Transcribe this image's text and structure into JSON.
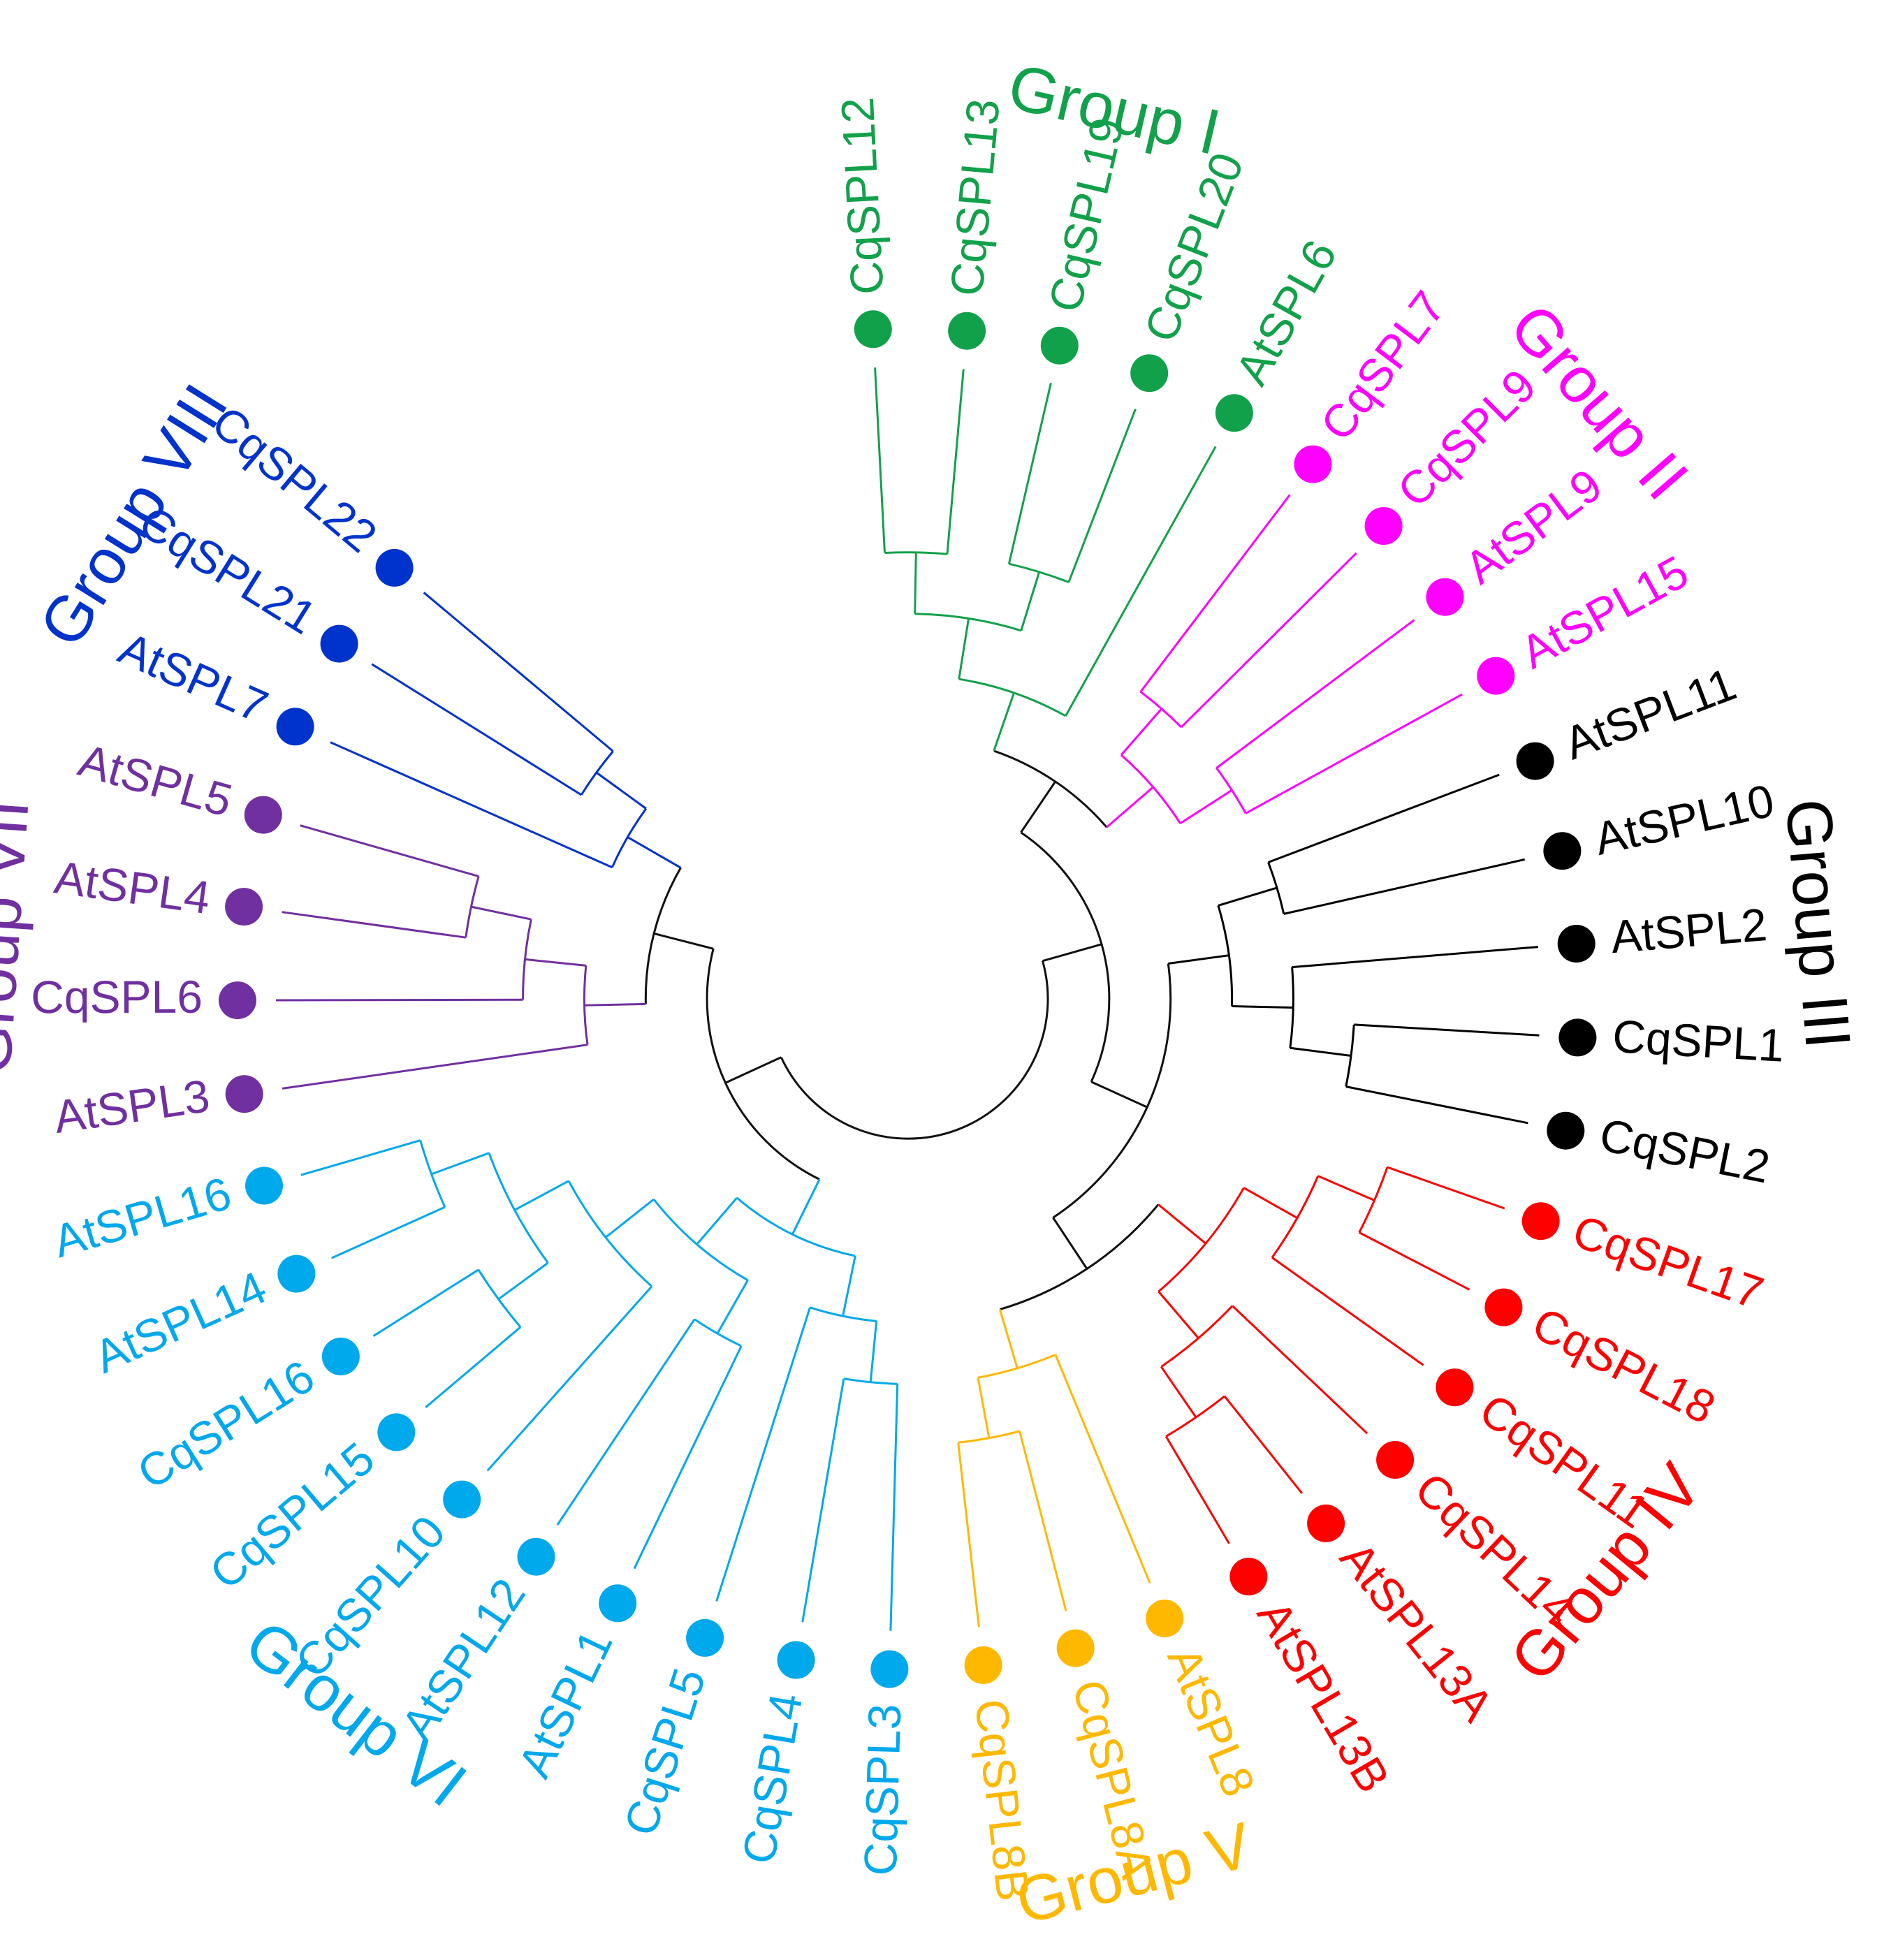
{
  "colors": {
    "backbone": "#111111",
    "group_i": "#12a14b",
    "group_ii": "#ff00ff",
    "group_iii": "#000000",
    "group_iv": "#ff0000",
    "group_v": "#ffb800",
    "group_vi": "#00a8ec",
    "group_vii": "#7030a0",
    "group_viii": "#0033cc"
  },
  "groups": [
    {
      "key": "group_i",
      "label": "Group I"
    },
    {
      "key": "group_ii",
      "label": "Group II"
    },
    {
      "key": "group_iii",
      "label": "Group III"
    },
    {
      "key": "group_iv",
      "label": "Group IV"
    },
    {
      "key": "group_v",
      "label": "Group V"
    },
    {
      "key": "group_vi",
      "label": "Group VI"
    },
    {
      "key": "group_vii",
      "label": "Group VII"
    },
    {
      "key": "group_viii",
      "label": "Group VIII"
    }
  ],
  "leaves": [
    {
      "name": "CqSPL12",
      "group": "group_i"
    },
    {
      "name": "CqSPL13",
      "group": "group_i"
    },
    {
      "name": "CqSPL19",
      "group": "group_i"
    },
    {
      "name": "CqSPL20",
      "group": "group_i"
    },
    {
      "name": "AtSPL6",
      "group": "group_i"
    },
    {
      "name": "CqSPL7",
      "group": "group_ii"
    },
    {
      "name": "CqSPL9",
      "group": "group_ii"
    },
    {
      "name": "AtSPL9",
      "group": "group_ii"
    },
    {
      "name": "AtSPL15",
      "group": "group_ii"
    },
    {
      "name": "AtSPL11",
      "group": "group_iii"
    },
    {
      "name": "AtSPL10",
      "group": "group_iii"
    },
    {
      "name": "AtSPL2",
      "group": "group_iii"
    },
    {
      "name": "CqSPL1",
      "group": "group_iii"
    },
    {
      "name": "CqSPL2",
      "group": "group_iii"
    },
    {
      "name": "CqSPL17",
      "group": "group_iv"
    },
    {
      "name": "CqSPL18",
      "group": "group_iv"
    },
    {
      "name": "CqSPL11",
      "group": "group_iv"
    },
    {
      "name": "CqSPL14",
      "group": "group_iv"
    },
    {
      "name": "AtSPL13A",
      "group": "group_iv"
    },
    {
      "name": "AtSPL13B",
      "group": "group_iv"
    },
    {
      "name": "AtSPL8",
      "group": "group_v"
    },
    {
      "name": "CqSPL8A",
      "group": "group_v"
    },
    {
      "name": "CqSPL8B",
      "group": "group_v"
    },
    {
      "name": "CqSPL3",
      "group": "group_vi"
    },
    {
      "name": "CqSPL4",
      "group": "group_vi"
    },
    {
      "name": "CqSPL5",
      "group": "group_vi"
    },
    {
      "name": "AtSPL1",
      "group": "group_vi"
    },
    {
      "name": "AtSPL12",
      "group": "group_vi"
    },
    {
      "name": "CqSPL10",
      "group": "group_vi"
    },
    {
      "name": "CqSPL15",
      "group": "group_vi"
    },
    {
      "name": "CqSPL16",
      "group": "group_vi"
    },
    {
      "name": "AtSPL14",
      "group": "group_vi"
    },
    {
      "name": "AtSPL16",
      "group": "group_vi"
    },
    {
      "name": "AtSPL3",
      "group": "group_vii"
    },
    {
      "name": "CqSPL6",
      "group": "group_vii"
    },
    {
      "name": "AtSPL4",
      "group": "group_vii"
    },
    {
      "name": "AtSPL5",
      "group": "group_vii"
    },
    {
      "name": "AtSPL7",
      "group": "group_viii"
    },
    {
      "name": "CqSPL21",
      "group": "group_viii"
    },
    {
      "name": "CqSPL22",
      "group": "group_viii"
    }
  ]
}
